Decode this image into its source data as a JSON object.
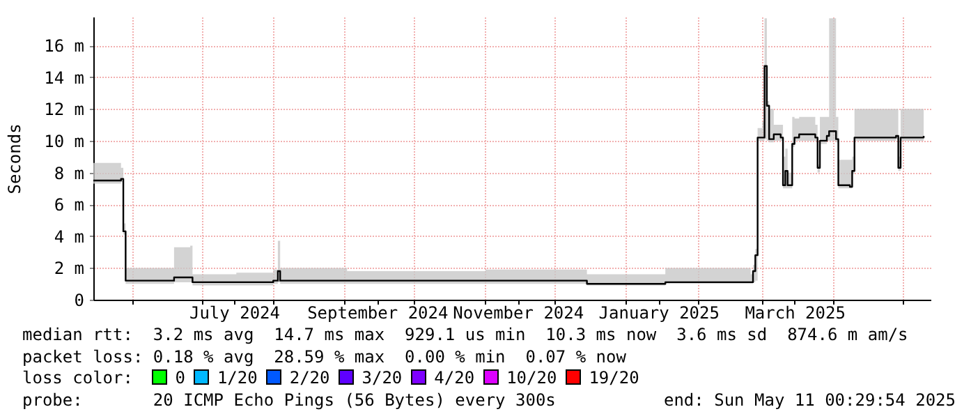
{
  "chart_data": {
    "type": "step",
    "ylabel": "Seconds",
    "xlim": [
      "2024-05-15",
      "2025-05-13"
    ],
    "xticks": [
      {
        "value": "2024-06-01",
        "label": null
      },
      {
        "value": "2024-07-01",
        "label": null
      },
      {
        "value": "2024-07-15",
        "label": "July 2024"
      },
      {
        "value": "2024-08-01",
        "label": null
      },
      {
        "value": "2024-09-01",
        "label": null
      },
      {
        "value": "2024-09-15",
        "label": "September 2024"
      },
      {
        "value": "2024-10-01",
        "label": null
      },
      {
        "value": "2024-11-01",
        "label": null
      },
      {
        "value": "2024-11-15",
        "label": "November 2024"
      },
      {
        "value": "2024-12-01",
        "label": null
      },
      {
        "value": "2025-01-01",
        "label": null
      },
      {
        "value": "2025-01-15",
        "label": "January 2025"
      },
      {
        "value": "2025-02-01",
        "label": null
      },
      {
        "value": "2025-03-01",
        "label": null
      },
      {
        "value": "2025-03-15",
        "label": "March 2025"
      },
      {
        "value": "2025-04-01",
        "label": null
      },
      {
        "value": "2025-05-01",
        "label": null
      }
    ],
    "ylim": [
      0,
      17.8
    ],
    "yticks": [
      0,
      {
        "value": 2,
        "label": "2 m"
      },
      {
        "value": 4,
        "label": "4 m"
      },
      {
        "value": 6,
        "label": "6 m"
      },
      {
        "value": 8,
        "label": "8 m"
      },
      {
        "value": 10,
        "label": "10 m"
      },
      {
        "value": 12,
        "label": "12 m"
      },
      {
        "value": 14,
        "label": "14 m"
      },
      {
        "value": 16,
        "label": "16 m"
      }
    ],
    "grid": true,
    "x": [
      "2024-05-15",
      "2024-05-27",
      "2024-05-28",
      "2024-05-29",
      "2024-06-10",
      "2024-06-19",
      "2024-06-26",
      "2024-06-27",
      "2024-07-16",
      "2024-08-01",
      "2024-08-03",
      "2024-08-04",
      "2024-09-02",
      "2024-10-02",
      "2024-11-01",
      "2024-12-15",
      "2025-01-18",
      "2025-02-24",
      "2025-02-25",
      "2025-02-26",
      "2025-02-27",
      "2025-03-01",
      "2025-03-02",
      "2025-03-03",
      "2025-03-04",
      "2025-03-06",
      "2025-03-09",
      "2025-03-10",
      "2025-03-11",
      "2025-03-12",
      "2025-03-14",
      "2025-03-15",
      "2025-03-17",
      "2025-03-24",
      "2025-03-25",
      "2025-03-26",
      "2025-03-29",
      "2025-03-30",
      "2025-04-02",
      "2025-04-03",
      "2025-04-08",
      "2025-04-09",
      "2025-04-10",
      "2025-04-28",
      "2025-04-29",
      "2025-04-30",
      "2025-05-10"
    ],
    "series": [
      {
        "color": "#000000",
        "values": [
          7.5,
          7.6,
          4.3,
          1.2,
          1.2,
          1.4,
          1.4,
          1.1,
          1.1,
          1.2,
          1.8,
          1.2,
          1.2,
          1.2,
          1.2,
          1.0,
          1.1,
          1.1,
          1.8,
          2.8,
          10.2,
          10.2,
          14.7,
          12.2,
          10.1,
          10.4,
          10.2,
          7.2,
          8.1,
          7.2,
          9.8,
          10.2,
          10.4,
          10.2,
          8.3,
          10.0,
          10.3,
          10.6,
          10.1,
          7.2,
          7.1,
          8.1,
          10.2,
          10.3,
          8.3,
          10.2,
          10.3
        ],
        "lower": [
          7.3,
          7.4,
          4.1,
          1.0,
          1.0,
          1.1,
          1.1,
          0.9,
          0.9,
          1.0,
          1.1,
          1.0,
          1.0,
          1.0,
          1.0,
          0.9,
          1.0,
          1.0,
          1.1,
          1.2,
          10.0,
          10.0,
          10.1,
          10.0,
          9.9,
          10.0,
          10.0,
          7.0,
          7.0,
          7.0,
          9.6,
          10.0,
          10.0,
          10.0,
          8.0,
          9.8,
          10.0,
          10.0,
          9.9,
          7.0,
          7.0,
          7.9,
          10.0,
          10.1,
          8.1,
          10.0,
          10.1
        ],
        "upper": [
          8.6,
          8.3,
          4.8,
          2.0,
          2.0,
          3.3,
          3.4,
          1.6,
          1.7,
          1.9,
          3.7,
          2.0,
          1.8,
          1.8,
          1.9,
          1.6,
          2.0,
          1.6,
          2.2,
          3.2,
          10.8,
          11.2,
          17.7,
          12.5,
          12.0,
          11.0,
          11.0,
          9.0,
          9.5,
          8.0,
          11.5,
          11.4,
          11.5,
          11.0,
          8.5,
          11.5,
          11.5,
          17.7,
          11.5,
          8.8,
          8.8,
          9.0,
          12.0,
          12.0,
          9.0,
          12.0,
          12.0
        ]
      }
    ],
    "annotations": [
      "median rtt:  3.2 ms avg  14.7 ms max  929.1 us min  10.3 ms now  3.6 ms sd  874.6 m am/s",
      "packet loss: 0.18 % avg  28.59 % max  0.00 % min  0.07 % now",
      "loss color:",
      "0",
      "1/20",
      "2/20",
      "3/20",
      "4/20",
      "10/20",
      "19/20",
      "probe:       20 ICMP Echo Pings (56 Bytes) every 300s",
      "end: Sun May 11 00:29:54 2025"
    ]
  }
}
